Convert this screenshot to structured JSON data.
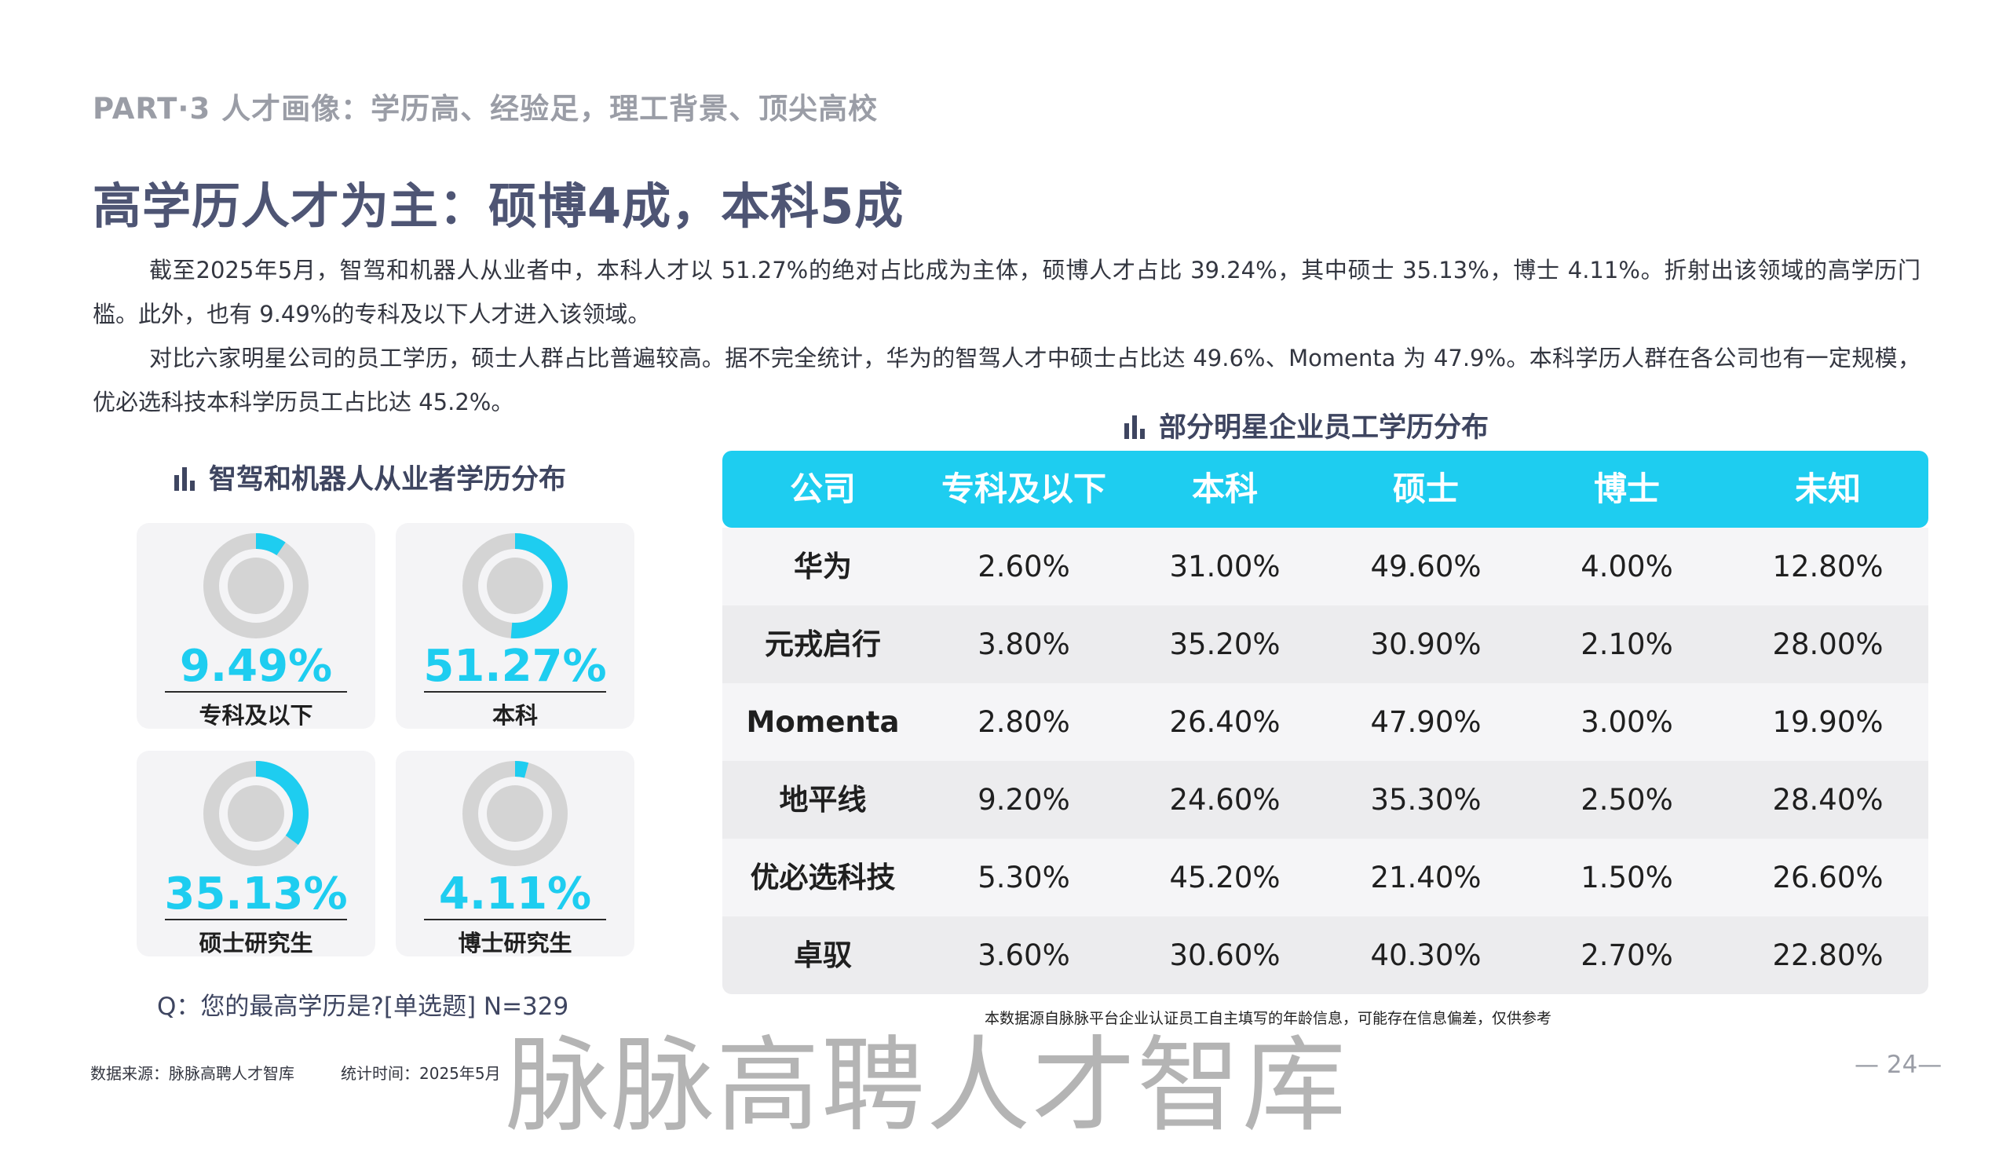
{
  "header": {
    "section_label": "PART·3  人才画像：学历高、经验足，理工背景、顶尖高校",
    "title": "高学历人才为主：硕博4成，本科5成"
  },
  "paragraphs": [
    "截至2025年5月，智驾和机器人从业者中，本科人才以 51.27%的绝对占比成为主体，硕博人才占比 39.24%，其中硕士 35.13%，博士 4.11%。折射出该领域的高学历门槛。此外，也有 9.49%的专科及以下人才进入该领域。",
    "对比六家明星公司的员工学历，硕士人群占比普遍较高。据不完全统计，华为的智驾人才中硕士占比达 49.6%、Momenta 为 47.9%。本科学历人群在各公司也有一定规模，优必选科技本科学历员工占比达 45.2%。"
  ],
  "left_panel": {
    "title": "智驾和机器人从业者学历分布",
    "cards": [
      {
        "value": 9.49,
        "value_label": "9.49%",
        "label": "专科及以下"
      },
      {
        "value": 51.27,
        "value_label": "51.27%",
        "label": "本科"
      },
      {
        "value": 35.13,
        "value_label": "35.13%",
        "label": "硕士研究生"
      },
      {
        "value": 4.11,
        "value_label": "4.11%",
        "label": "博士研究生"
      }
    ],
    "survey_question": "Q：您的最高学历是?[单选题]      N=329",
    "colors": {
      "arc": "#1ecdf0",
      "ring": "#d4d4d4",
      "card_bg": "#f4f4f6"
    }
  },
  "right_panel": {
    "title": "部分明星企业员工学历分布",
    "columns": [
      "公司",
      "专科及以下",
      "本科",
      "硕士",
      "博士",
      "未知"
    ],
    "rows": [
      [
        "华为",
        "2.60%",
        "31.00%",
        "49.60%",
        "4.00%",
        "12.80%"
      ],
      [
        "元戎启行",
        "3.80%",
        "35.20%",
        "30.90%",
        "2.10%",
        "28.00%"
      ],
      [
        "Momenta",
        "2.80%",
        "26.40%",
        "47.90%",
        "3.00%",
        "19.90%"
      ],
      [
        "地平线",
        "9.20%",
        "24.60%",
        "35.30%",
        "2.50%",
        "28.40%"
      ],
      [
        "优必选科技",
        "5.30%",
        "45.20%",
        "21.40%",
        "1.50%",
        "26.60%"
      ],
      [
        "卓驭",
        "3.60%",
        "30.60%",
        "40.30%",
        "2.70%",
        "22.80%"
      ]
    ],
    "note": "本数据源自脉脉平台企业认证员工自主填写的年龄信息，可能存在信息偏差，仅供参考",
    "colors": {
      "header": "#1ecdf0"
    }
  },
  "footer": {
    "source": "数据来源：脉脉高聘人才智库",
    "time": "统计时间：2025年5月",
    "watermark": "脉脉高聘人才智库",
    "page_number": "— 24—"
  }
}
